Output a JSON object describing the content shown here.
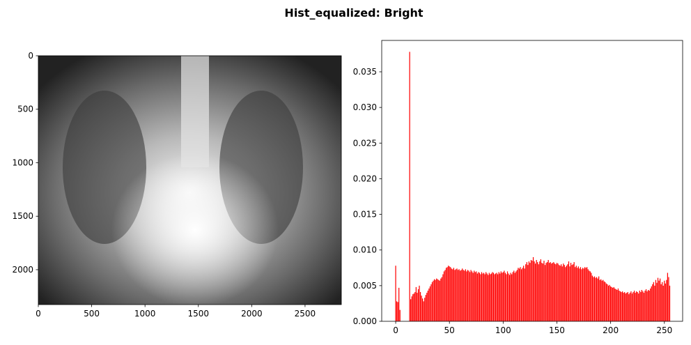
{
  "title": "Hist_equalized: Bright",
  "chart_data": [
    {
      "type": "image",
      "xlim": [
        0,
        2840
      ],
      "ylim": [
        2326,
        0
      ],
      "xticks": [
        0,
        500,
        1000,
        1500,
        2000,
        2500
      ],
      "yticks": [
        0,
        500,
        1000,
        1500,
        2000
      ]
    },
    {
      "type": "bar",
      "color": "#ff0000",
      "xlim": [
        -13,
        267
      ],
      "ylim": [
        0,
        0.0394
      ],
      "xticks": [
        0,
        50,
        100,
        150,
        200,
        250
      ],
      "yticks": [
        {
          "value": 0,
          "label": "0.000"
        },
        0.005,
        {
          "value": 0.01,
          "label": "0.010"
        },
        0.015,
        {
          "value": 0.02,
          "label": "0.020"
        },
        0.025,
        {
          "value": 0.03,
          "label": "0.030"
        },
        0.035
      ],
      "x": [
        0,
        1,
        2,
        3,
        4,
        5,
        6,
        7,
        8,
        9,
        10,
        11,
        12,
        13,
        14,
        15,
        16,
        17,
        18,
        19,
        20,
        21,
        22,
        23,
        24,
        25,
        26,
        27,
        28,
        29,
        30,
        31,
        32,
        33,
        34,
        35,
        36,
        37,
        38,
        39,
        40,
        41,
        42,
        43,
        44,
        45,
        46,
        47,
        48,
        49,
        50,
        51,
        52,
        53,
        54,
        55,
        56,
        57,
        58,
        59,
        60,
        61,
        62,
        63,
        64,
        65,
        66,
        67,
        68,
        69,
        70,
        71,
        72,
        73,
        74,
        75,
        76,
        77,
        78,
        79,
        80,
        81,
        82,
        83,
        84,
        85,
        86,
        87,
        88,
        89,
        90,
        91,
        92,
        93,
        94,
        95,
        96,
        97,
        98,
        99,
        100,
        101,
        102,
        103,
        104,
        105,
        106,
        107,
        108,
        109,
        110,
        111,
        112,
        113,
        114,
        115,
        116,
        117,
        118,
        119,
        120,
        121,
        122,
        123,
        124,
        125,
        126,
        127,
        128,
        129,
        130,
        131,
        132,
        133,
        134,
        135,
        136,
        137,
        138,
        139,
        140,
        141,
        142,
        143,
        144,
        145,
        146,
        147,
        148,
        149,
        150,
        151,
        152,
        153,
        154,
        155,
        156,
        157,
        158,
        159,
        160,
        161,
        162,
        163,
        164,
        165,
        166,
        167,
        168,
        169,
        170,
        171,
        172,
        173,
        174,
        175,
        176,
        177,
        178,
        179,
        180,
        181,
        182,
        183,
        184,
        185,
        186,
        187,
        188,
        189,
        190,
        191,
        192,
        193,
        194,
        195,
        196,
        197,
        198,
        199,
        200,
        201,
        202,
        203,
        204,
        205,
        206,
        207,
        208,
        209,
        210,
        211,
        212,
        213,
        214,
        215,
        216,
        217,
        218,
        219,
        220,
        221,
        222,
        223,
        224,
        225,
        226,
        227,
        228,
        229,
        230,
        231,
        232,
        233,
        234,
        235,
        236,
        237,
        238,
        239,
        240,
        241,
        242,
        243,
        244,
        245,
        246,
        247,
        248,
        249,
        250,
        251,
        252,
        253,
        254,
        255
      ],
      "values": [
        0.0078,
        0.0028,
        0.0027,
        0.0047,
        0.0016,
        0,
        0,
        0,
        0,
        0,
        0,
        0,
        0,
        0.0378,
        0.0031,
        0.0035,
        0.0038,
        0.0039,
        0.0041,
        0.0048,
        0.004,
        0.0045,
        0.005,
        0.0041,
        0.0036,
        0.0032,
        0.0028,
        0.0033,
        0.0037,
        0.004,
        0.0043,
        0.0046,
        0.0049,
        0.0052,
        0.0055,
        0.0057,
        0.0059,
        0.0058,
        0.006,
        0.0059,
        0.0058,
        0.0057,
        0.006,
        0.0062,
        0.0066,
        0.007,
        0.0072,
        0.0075,
        0.0076,
        0.0078,
        0.0077,
        0.0076,
        0.0074,
        0.0073,
        0.0075,
        0.0072,
        0.0073,
        0.0074,
        0.0072,
        0.0073,
        0.0071,
        0.0072,
        0.0074,
        0.0072,
        0.0071,
        0.0073,
        0.007,
        0.0072,
        0.0071,
        0.0069,
        0.0072,
        0.007,
        0.0068,
        0.0071,
        0.0069,
        0.007,
        0.0067,
        0.0069,
        0.0068,
        0.0066,
        0.0069,
        0.0067,
        0.0068,
        0.0066,
        0.0069,
        0.0067,
        0.0065,
        0.0068,
        0.0066,
        0.0067,
        0.0069,
        0.0068,
        0.0066,
        0.0067,
        0.0068,
        0.0066,
        0.0069,
        0.0067,
        0.007,
        0.0068,
        0.0069,
        0.0071,
        0.0068,
        0.0066,
        0.007,
        0.0067,
        0.0065,
        0.0068,
        0.0066,
        0.0069,
        0.0071,
        0.0068,
        0.007,
        0.0072,
        0.0075,
        0.0074,
        0.0076,
        0.0073,
        0.0075,
        0.0078,
        0.0074,
        0.008,
        0.0083,
        0.0079,
        0.0084,
        0.0082,
        0.0086,
        0.0085,
        0.009,
        0.0084,
        0.0081,
        0.0086,
        0.0083,
        0.008,
        0.0084,
        0.0087,
        0.0082,
        0.0081,
        0.0085,
        0.0079,
        0.0082,
        0.0083,
        0.0086,
        0.0082,
        0.0083,
        0.0081,
        0.0082,
        0.0083,
        0.0081,
        0.008,
        0.0082,
        0.0081,
        0.0079,
        0.0078,
        0.008,
        0.0077,
        0.0081,
        0.0079,
        0.0076,
        0.0078,
        0.008,
        0.0084,
        0.0077,
        0.0082,
        0.0079,
        0.008,
        0.0083,
        0.0076,
        0.0078,
        0.0075,
        0.0077,
        0.0074,
        0.0076,
        0.0073,
        0.0075,
        0.0074,
        0.0076,
        0.0075,
        0.0076,
        0.0073,
        0.0071,
        0.007,
        0.0068,
        0.0064,
        0.0062,
        0.0063,
        0.0061,
        0.0062,
        0.006,
        0.0063,
        0.0058,
        0.0059,
        0.0057,
        0.0058,
        0.0056,
        0.0055,
        0.0053,
        0.0052,
        0.005,
        0.0051,
        0.0049,
        0.0048,
        0.0047,
        0.0048,
        0.0046,
        0.0045,
        0.0044,
        0.0046,
        0.0043,
        0.0042,
        0.0041,
        0.0042,
        0.004,
        0.0041,
        0.0039,
        0.004,
        0.0041,
        0.0038,
        0.004,
        0.0042,
        0.0039,
        0.0041,
        0.0043,
        0.004,
        0.0042,
        0.0041,
        0.0039,
        0.0043,
        0.0041,
        0.0044,
        0.0042,
        0.004,
        0.0043,
        0.0045,
        0.0042,
        0.0044,
        0.0043,
        0.0046,
        0.0049,
        0.0052,
        0.0055,
        0.005,
        0.0058,
        0.0054,
        0.0061,
        0.0057,
        0.006,
        0.0052,
        0.0055,
        0.005,
        0.0057,
        0.0053,
        0.0058,
        0.0068,
        0.0062,
        0.005
      ]
    }
  ]
}
